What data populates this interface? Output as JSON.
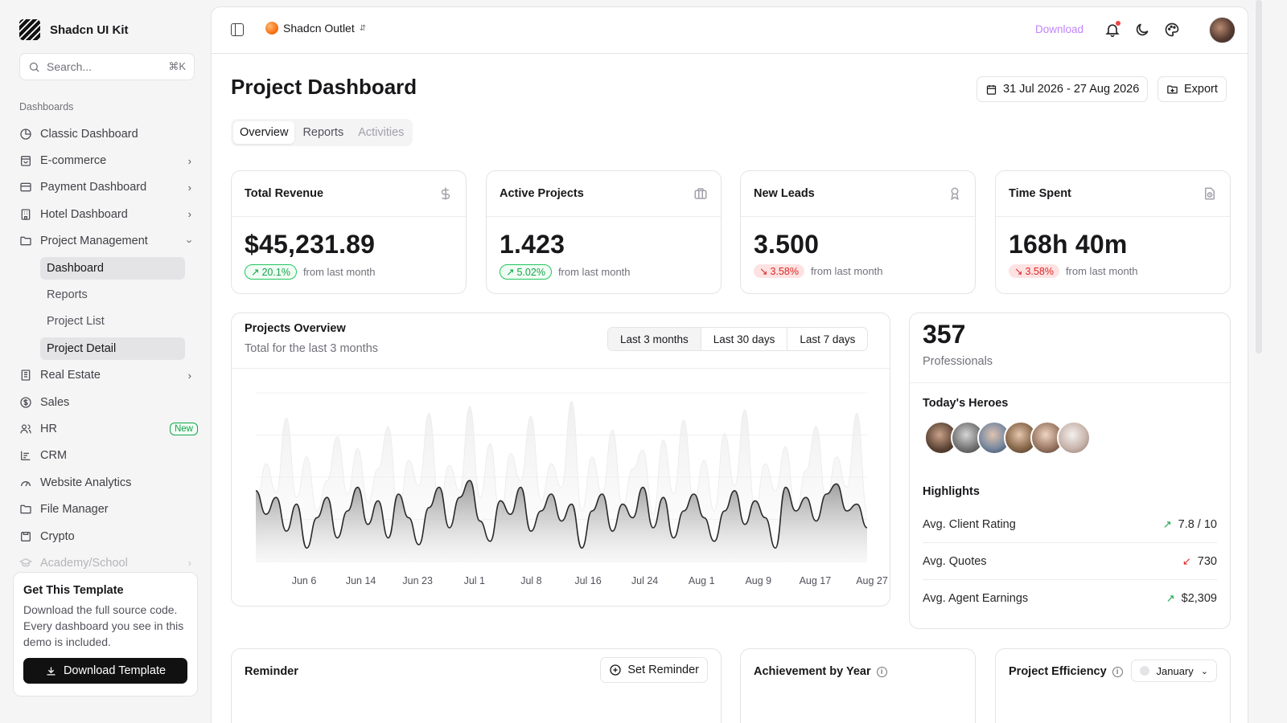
{
  "brand": {
    "name": "Shadcn UI Kit"
  },
  "search": {
    "placeholder": "Search...",
    "shortcut": "⌘K"
  },
  "sidebar": {
    "section": "Dashboards",
    "items": [
      {
        "label": "Classic Dashboard",
        "icon": "chart-pie-icon"
      },
      {
        "label": "E-commerce",
        "icon": "shopping-bag-icon",
        "chevron": true
      },
      {
        "label": "Payment Dashboard",
        "icon": "credit-card-icon",
        "chevron": true
      },
      {
        "label": "Hotel Dashboard",
        "icon": "building-icon",
        "chevron": true
      },
      {
        "label": "Project Management",
        "icon": "folder-icon",
        "expanded": true
      }
    ],
    "sub_items": [
      {
        "label": "Dashboard",
        "active": true
      },
      {
        "label": "Reports"
      },
      {
        "label": "Project List"
      },
      {
        "label": "Project Detail",
        "active": true
      }
    ],
    "items_after": [
      {
        "label": "Real Estate",
        "icon": "building-icon",
        "chevron": true
      },
      {
        "label": "Sales",
        "icon": "dollar-circle-icon"
      },
      {
        "label": "HR",
        "icon": "users-icon",
        "badge": "New"
      },
      {
        "label": "CRM",
        "icon": "list-icon"
      },
      {
        "label": "Website Analytics",
        "icon": "gauge-icon"
      },
      {
        "label": "File Manager",
        "icon": "folder-icon"
      },
      {
        "label": "Crypto",
        "icon": "wallet-icon"
      },
      {
        "label": "Academy/School",
        "icon": "graduation-cap-icon",
        "chevron": true,
        "faded": true
      }
    ]
  },
  "promo": {
    "title": "Get This Template",
    "text": "Download the full source code. Every dashboard you see in this demo is included.",
    "button": "Download Template"
  },
  "topbar": {
    "store": "Shadcn Outlet",
    "download": "Download"
  },
  "page": {
    "title": "Project Dashboard",
    "date_range": "31 Jul 2026 - 27 Aug 2026",
    "export": "Export",
    "tabs": [
      "Overview",
      "Reports",
      "Activities"
    ]
  },
  "kpis": [
    {
      "title": "Total Revenue",
      "value": "$45,231.89",
      "change": "20.1%",
      "dir": "up",
      "note": "from last month",
      "icon": "dollar-icon"
    },
    {
      "title": "Active Projects",
      "value": "1.423",
      "change": "5.02%",
      "dir": "up",
      "note": "from last month",
      "icon": "briefcase-icon"
    },
    {
      "title": "New Leads",
      "value": "3.500",
      "change": "3.58%",
      "dir": "down",
      "note": "from last month",
      "icon": "award-icon"
    },
    {
      "title": "Time Spent",
      "value": "168h 40m",
      "change": "3.58%",
      "dir": "down",
      "note": "from last month",
      "icon": "file-clock-icon"
    }
  ],
  "overview": {
    "title": "Projects Overview",
    "subtitle": "Total for the last 3 months",
    "ranges": [
      "Last 3 months",
      "Last 30 days",
      "Last 7 days"
    ]
  },
  "chart_data": {
    "type": "area",
    "title": "Projects Overview",
    "x_ticks": [
      "Jun 6",
      "Jun 14",
      "Jun 23",
      "Jul 1",
      "Jul 8",
      "Jul 16",
      "Jul 24",
      "Aug 1",
      "Aug 9",
      "Aug 17",
      "Aug 27"
    ],
    "grid": true,
    "legend": "none",
    "ylim": [
      0,
      100
    ],
    "series": [
      {
        "values": [
          30,
          58,
          41,
          85,
          38,
          62,
          30,
          48,
          74,
          40,
          67,
          35,
          55,
          80,
          28,
          60,
          45,
          88,
          33,
          57,
          42,
          92,
          38,
          70,
          25,
          64,
          48,
          86,
          36,
          58,
          44,
          95,
          30,
          62,
          40,
          78,
          33,
          55,
          66,
          28,
          72,
          40,
          84,
          35,
          60,
          30,
          76,
          45,
          90,
          32,
          58,
          42,
          68,
          28,
          54,
          80,
          36,
          62,
          44,
          88,
          30
        ]
      },
      {
        "values": [
          42,
          28,
          38,
          18,
          34,
          8,
          26,
          38,
          14,
          30,
          44,
          22,
          36,
          14,
          40,
          26,
          10,
          32,
          44,
          20,
          38,
          48,
          24,
          12,
          36,
          28,
          44,
          18,
          30,
          40,
          24,
          34,
          8,
          30,
          40,
          18,
          34,
          26,
          44,
          20,
          38,
          14,
          30,
          40,
          26,
          12,
          30,
          42,
          22,
          36,
          26,
          8,
          44,
          30,
          38,
          24,
          40,
          46,
          30,
          34,
          20
        ]
      }
    ]
  },
  "professionals": {
    "count": "357",
    "label": "Professionals",
    "heroes_title": "Today's Heroes",
    "highlights_title": "Highlights",
    "highlights": [
      {
        "label": "Avg. Client Rating",
        "value": "7.8 / 10",
        "dir": "up"
      },
      {
        "label": "Avg. Quotes",
        "value": "730",
        "dir": "down"
      },
      {
        "label": "Avg. Agent Earnings",
        "value": "$2,309",
        "dir": "up"
      }
    ]
  },
  "bottom": {
    "reminder_title": "Reminder",
    "set_reminder": "Set Reminder",
    "achievement_title": "Achievement by Year",
    "efficiency_title": "Project Efficiency",
    "month": "January"
  }
}
